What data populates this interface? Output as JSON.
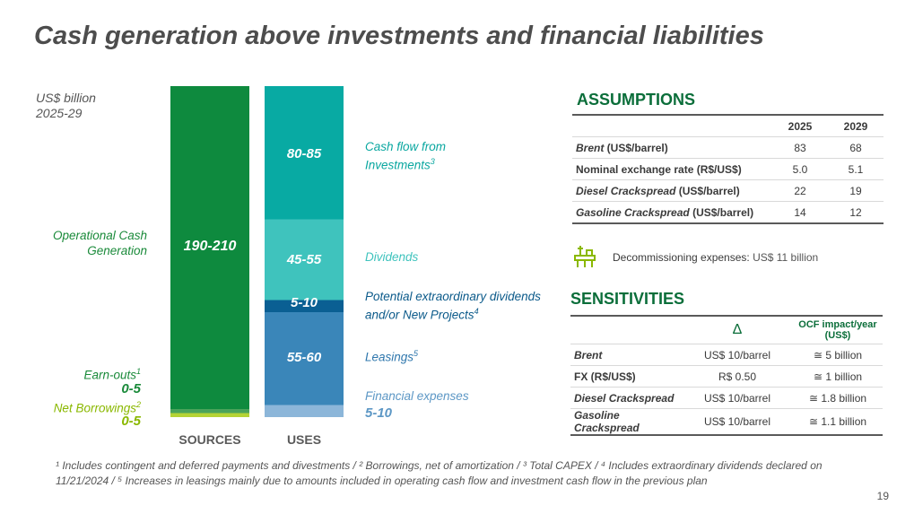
{
  "title": "Cash generation above investments and financial liabilities",
  "unit_line1": "US$ billion",
  "unit_line2": "2025-29",
  "chart_data": {
    "type": "stacked-bar",
    "title": "Cash generation above investments and financial liabilities",
    "unit": "US$ billion, 2025-29",
    "categories": [
      "SOURCES",
      "USES"
    ],
    "ylim": [
      0,
      220
    ],
    "sources": [
      {
        "name": "Operational Cash Generation",
        "range": "190-210",
        "value": 200,
        "color": "#0e8a3e"
      },
      {
        "name": "Earn-outs",
        "sup": "1",
        "range": "0-5",
        "value": 2.5,
        "color": "#4aa35a"
      },
      {
        "name": "Net Borrowings",
        "sup": "2",
        "range": "0-5",
        "value": 2.5,
        "color": "#b5d335"
      }
    ],
    "uses": [
      {
        "name": "Cash flow from Investments",
        "sup": "3",
        "range": "80-85",
        "value": 82.5,
        "color": "#08aaa3"
      },
      {
        "name": "Dividends",
        "range": "45-55",
        "value": 50,
        "color": "#3fc3bd"
      },
      {
        "name": "Potential extraordinary dividends and/or New Projects",
        "sup": "4",
        "range": "5-10",
        "value": 7.5,
        "color": "#0a5f93"
      },
      {
        "name": "Leasings",
        "sup": "5",
        "range": "55-60",
        "value": 57.5,
        "color": "#3a86b9"
      },
      {
        "name": "Financial expenses",
        "range": "5-10",
        "value": 7.5,
        "color": "#8cb6d9"
      }
    ]
  },
  "labels": {
    "ocg_line1": "Operational Cash",
    "ocg_line2": "Generation",
    "ocg_value": "190-210",
    "earnouts": "Earn-outs",
    "earnouts_sup": "1",
    "earnouts_value": "0-5",
    "netb": "Net Borrowings",
    "netb_sup": "2",
    "netb_value": "0-5",
    "cfi_line1": "Cash flow from",
    "cfi_line2": "Investments",
    "cfi_sup": "3",
    "cfi_value": "80-85",
    "div": "Dividends",
    "div_value": "45-55",
    "ped_line1": "Potential extraordinary dividends",
    "ped_line2": "and/or New Projects",
    "ped_sup": "4",
    "ped_value": "5-10",
    "lease": "Leasings",
    "lease_sup": "5",
    "lease_value": "55-60",
    "fin": "Financial expenses",
    "fin_value": "5-10",
    "sources": "SOURCES",
    "uses": "USES"
  },
  "assumptions": {
    "title": "ASSUMPTIONS",
    "col1": "2025",
    "col2": "2029",
    "rows": [
      {
        "italic": "Brent",
        "rest": " (US$/barrel)",
        "v1": "83",
        "v2": "68"
      },
      {
        "italic": "",
        "rest": "Nominal exchange rate (R$/US$)",
        "v1": "5.0",
        "v2": "5.1"
      },
      {
        "italic": "Diesel Crackspread",
        "rest": " (US$/barrel)",
        "v1": "22",
        "v2": "19"
      },
      {
        "italic": "Gasoline Crackspread",
        "rest": " (US$/barrel)",
        "v1": "14",
        "v2": "12"
      }
    ],
    "decom_label": "Decommissioning expenses: ",
    "decom_value": "US$ 11 billion",
    "icon": "oil-platform-icon"
  },
  "sensitivities": {
    "title": "SENSITIVITIES",
    "col1": "Δ",
    "col2": "OCF impact/year (US$)",
    "rows": [
      {
        "name": "Brent",
        "italic": true,
        "delta": "US$ 10/barrel",
        "impact": "≅ 5 billion"
      },
      {
        "name": "FX (R$/US$)",
        "italic": false,
        "delta": "R$ 0.50",
        "impact": "≅ 1 billion"
      },
      {
        "name": "Diesel Crackspread",
        "italic": true,
        "delta": "US$ 10/barrel",
        "impact": "≅ 1.8 billion"
      },
      {
        "name": "Gasoline Crackspread",
        "italic": true,
        "delta": "US$ 10/barrel",
        "impact": "≅ 1.1 billion"
      }
    ]
  },
  "footnote": "¹ Includes contingent and deferred payments and divestments / ² Borrowings, net of amortization / ³ Total CAPEX / ⁴ Includes extraordinary dividends declared on 11/21/2024 / ⁵ Increases in leasings mainly due to amounts included in operating cash flow and investment cash flow in the previous plan",
  "page_number": "19",
  "colors": {
    "brand_green": "#0b6e3a",
    "title_gray": "#4d4d4d"
  }
}
